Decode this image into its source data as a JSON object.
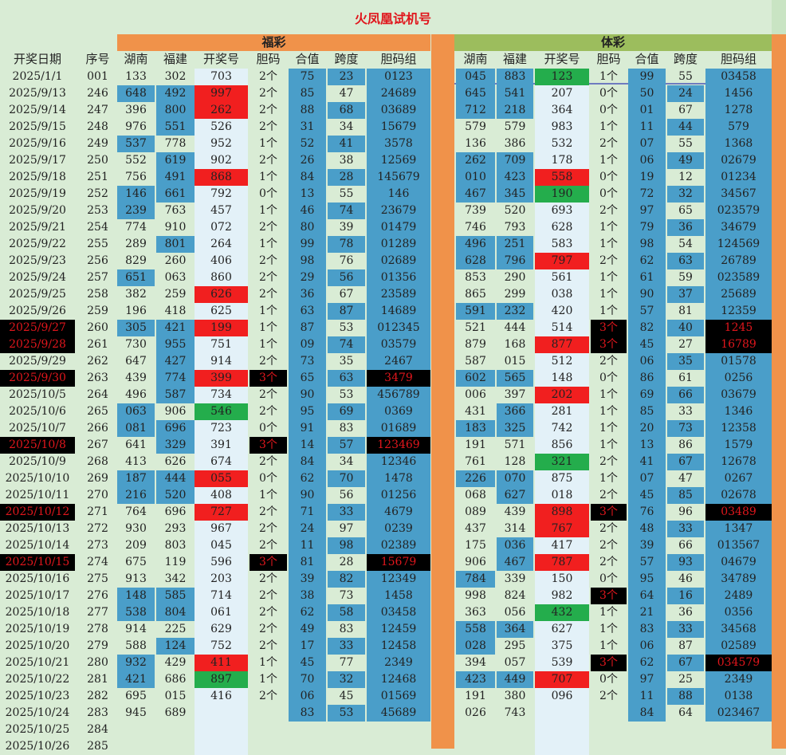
{
  "title": "火凤凰试机号",
  "section_fc": "福彩",
  "section_tc": "体彩",
  "headers": {
    "date": "开奖日期",
    "seq": "序号",
    "hunan": "湖南",
    "fujian": "福建",
    "draw": "开奖号",
    "dan": "胆码",
    "sum": "合值",
    "span": "跨度",
    "group": "胆码组"
  },
  "colors": {
    "blue": "#4a9ec9",
    "red": "#f11f1f",
    "green": "#24ad4c",
    "black": "#000000",
    "orange": "#f0924a",
    "olive": "#9cbd5d",
    "bg": "#d9ecd5"
  },
  "rows": [
    {
      "date": "2025/1/1",
      "seq": "001",
      "fc": {
        "hn": "133",
        "fj": "302",
        "draw": "703",
        "dan": "2个",
        "sum": "75",
        "span": "23",
        "group": "0123"
      },
      "tc": {
        "hn": "045",
        "fj": "883",
        "draw": "123",
        "dan": "1个",
        "sum": "99",
        "span": "55",
        "group": "03458"
      }
    },
    {
      "date": "2025/9/13",
      "seq": "246",
      "fc": {
        "hn": "648",
        "fj": "492",
        "draw": "997",
        "dan": "2个",
        "sum": "85",
        "span": "47",
        "group": "24689"
      },
      "tc": {
        "hn": "645",
        "fj": "541",
        "draw": "207",
        "dan": "0个",
        "sum": "50",
        "span": "24",
        "group": "1456"
      }
    },
    {
      "date": "2025/9/14",
      "seq": "247",
      "fc": {
        "hn": "396",
        "fj": "800",
        "draw": "262",
        "dan": "2个",
        "sum": "88",
        "span": "68",
        "group": "03689"
      },
      "tc": {
        "hn": "712",
        "fj": "218",
        "draw": "364",
        "dan": "0个",
        "sum": "01",
        "span": "67",
        "group": "1278"
      }
    },
    {
      "date": "2025/9/15",
      "seq": "248",
      "fc": {
        "hn": "976",
        "fj": "551",
        "draw": "526",
        "dan": "2个",
        "sum": "31",
        "span": "34",
        "group": "15679"
      },
      "tc": {
        "hn": "579",
        "fj": "579",
        "draw": "983",
        "dan": "1个",
        "sum": "11",
        "span": "44",
        "group": "579"
      }
    },
    {
      "date": "2025/9/16",
      "seq": "249",
      "fc": {
        "hn": "537",
        "fj": "778",
        "draw": "952",
        "dan": "1个",
        "sum": "52",
        "span": "41",
        "group": "3578"
      },
      "tc": {
        "hn": "136",
        "fj": "386",
        "draw": "532",
        "dan": "2个",
        "sum": "07",
        "span": "55",
        "group": "1368"
      }
    },
    {
      "date": "2025/9/17",
      "seq": "250",
      "fc": {
        "hn": "552",
        "fj": "619",
        "draw": "902",
        "dan": "2个",
        "sum": "26",
        "span": "38",
        "group": "12569"
      },
      "tc": {
        "hn": "262",
        "fj": "709",
        "draw": "178",
        "dan": "1个",
        "sum": "06",
        "span": "49",
        "group": "02679"
      }
    },
    {
      "date": "2025/9/18",
      "seq": "251",
      "fc": {
        "hn": "756",
        "fj": "491",
        "draw": "868",
        "dan": "1个",
        "sum": "84",
        "span": "28",
        "group": "145679"
      },
      "tc": {
        "hn": "010",
        "fj": "423",
        "draw": "558",
        "dan": "0个",
        "sum": "19",
        "span": "12",
        "group": "01234"
      }
    },
    {
      "date": "2025/9/19",
      "seq": "252",
      "fc": {
        "hn": "146",
        "fj": "661",
        "draw": "792",
        "dan": "0个",
        "sum": "13",
        "span": "55",
        "group": "146"
      },
      "tc": {
        "hn": "467",
        "fj": "345",
        "draw": "190",
        "dan": "0个",
        "sum": "72",
        "span": "32",
        "group": "34567"
      }
    },
    {
      "date": "2025/9/20",
      "seq": "253",
      "fc": {
        "hn": "239",
        "fj": "763",
        "draw": "457",
        "dan": "1个",
        "sum": "46",
        "span": "74",
        "group": "23679"
      },
      "tc": {
        "hn": "739",
        "fj": "520",
        "draw": "693",
        "dan": "2个",
        "sum": "97",
        "span": "65",
        "group": "023579"
      }
    },
    {
      "date": "2025/9/21",
      "seq": "254",
      "fc": {
        "hn": "774",
        "fj": "910",
        "draw": "072",
        "dan": "2个",
        "sum": "80",
        "span": "39",
        "group": "01479"
      },
      "tc": {
        "hn": "746",
        "fj": "793",
        "draw": "628",
        "dan": "1个",
        "sum": "79",
        "span": "36",
        "group": "34679"
      }
    },
    {
      "date": "2025/9/22",
      "seq": "255",
      "fc": {
        "hn": "289",
        "fj": "801",
        "draw": "264",
        "dan": "1个",
        "sum": "99",
        "span": "78",
        "group": "01289"
      },
      "tc": {
        "hn": "496",
        "fj": "251",
        "draw": "583",
        "dan": "1个",
        "sum": "98",
        "span": "54",
        "group": "124569"
      }
    },
    {
      "date": "2025/9/23",
      "seq": "256",
      "fc": {
        "hn": "829",
        "fj": "260",
        "draw": "406",
        "dan": "2个",
        "sum": "98",
        "span": "76",
        "group": "02689"
      },
      "tc": {
        "hn": "628",
        "fj": "796",
        "draw": "797",
        "dan": "2个",
        "sum": "62",
        "span": "63",
        "group": "26789"
      }
    },
    {
      "date": "2025/9/24",
      "seq": "257",
      "fc": {
        "hn": "651",
        "fj": "063",
        "draw": "860",
        "dan": "2个",
        "sum": "29",
        "span": "56",
        "group": "01356"
      },
      "tc": {
        "hn": "853",
        "fj": "290",
        "draw": "561",
        "dan": "1个",
        "sum": "61",
        "span": "59",
        "group": "023589"
      }
    },
    {
      "date": "2025/9/25",
      "seq": "258",
      "fc": {
        "hn": "382",
        "fj": "259",
        "draw": "626",
        "dan": "2个",
        "sum": "36",
        "span": "67",
        "group": "23589"
      },
      "tc": {
        "hn": "865",
        "fj": "299",
        "draw": "038",
        "dan": "1个",
        "sum": "90",
        "span": "37",
        "group": "25689"
      }
    },
    {
      "date": "2025/9/26",
      "seq": "259",
      "fc": {
        "hn": "196",
        "fj": "418",
        "draw": "625",
        "dan": "1个",
        "sum": "63",
        "span": "87",
        "group": "14689"
      },
      "tc": {
        "hn": "591",
        "fj": "232",
        "draw": "420",
        "dan": "1个",
        "sum": "57",
        "span": "81",
        "group": "12359"
      }
    },
    {
      "date": "2025/9/27",
      "seq": "260",
      "fc": {
        "hn": "305",
        "fj": "421",
        "draw": "199",
        "dan": "1个",
        "sum": "87",
        "span": "53",
        "group": "012345"
      },
      "tc": {
        "hn": "521",
        "fj": "444",
        "draw": "514",
        "dan": "3个",
        "sum": "82",
        "span": "40",
        "group": "1245"
      }
    },
    {
      "date": "2025/9/28",
      "seq": "261",
      "fc": {
        "hn": "730",
        "fj": "955",
        "draw": "751",
        "dan": "1个",
        "sum": "09",
        "span": "74",
        "group": "03579"
      },
      "tc": {
        "hn": "879",
        "fj": "168",
        "draw": "877",
        "dan": "3个",
        "sum": "45",
        "span": "27",
        "group": "16789"
      }
    },
    {
      "date": "2025/9/29",
      "seq": "262",
      "fc": {
        "hn": "647",
        "fj": "427",
        "draw": "914",
        "dan": "2个",
        "sum": "73",
        "span": "35",
        "group": "2467"
      },
      "tc": {
        "hn": "587",
        "fj": "015",
        "draw": "512",
        "dan": "2个",
        "sum": "06",
        "span": "35",
        "group": "01578"
      }
    },
    {
      "date": "2025/9/30",
      "seq": "263",
      "fc": {
        "hn": "439",
        "fj": "774",
        "draw": "399",
        "dan": "3个",
        "sum": "65",
        "span": "63",
        "group": "3479"
      },
      "tc": {
        "hn": "602",
        "fj": "565",
        "draw": "148",
        "dan": "0个",
        "sum": "86",
        "span": "61",
        "group": "0256"
      }
    },
    {
      "date": "2025/10/5",
      "seq": "264",
      "fc": {
        "hn": "496",
        "fj": "587",
        "draw": "734",
        "dan": "2个",
        "sum": "90",
        "span": "53",
        "group": "456789"
      },
      "tc": {
        "hn": "006",
        "fj": "397",
        "draw": "202",
        "dan": "1个",
        "sum": "69",
        "span": "66",
        "group": "03679"
      }
    },
    {
      "date": "2025/10/6",
      "seq": "265",
      "fc": {
        "hn": "063",
        "fj": "906",
        "draw": "546",
        "dan": "2个",
        "sum": "95",
        "span": "69",
        "group": "0369"
      },
      "tc": {
        "hn": "431",
        "fj": "366",
        "draw": "281",
        "dan": "1个",
        "sum": "85",
        "span": "33",
        "group": "1346"
      }
    },
    {
      "date": "2025/10/7",
      "seq": "266",
      "fc": {
        "hn": "081",
        "fj": "696",
        "draw": "723",
        "dan": "0个",
        "sum": "91",
        "span": "83",
        "group": "01689"
      },
      "tc": {
        "hn": "183",
        "fj": "325",
        "draw": "742",
        "dan": "1个",
        "sum": "20",
        "span": "73",
        "group": "12358"
      }
    },
    {
      "date": "2025/10/8",
      "seq": "267",
      "fc": {
        "hn": "641",
        "fj": "329",
        "draw": "391",
        "dan": "3个",
        "sum": "14",
        "span": "57",
        "group": "123469"
      },
      "tc": {
        "hn": "191",
        "fj": "571",
        "draw": "856",
        "dan": "1个",
        "sum": "13",
        "span": "86",
        "group": "1579"
      }
    },
    {
      "date": "2025/10/9",
      "seq": "268",
      "fc": {
        "hn": "413",
        "fj": "626",
        "draw": "674",
        "dan": "2个",
        "sum": "84",
        "span": "34",
        "group": "12346"
      },
      "tc": {
        "hn": "761",
        "fj": "128",
        "draw": "321",
        "dan": "2个",
        "sum": "41",
        "span": "67",
        "group": "12678"
      }
    },
    {
      "date": "2025/10/10",
      "seq": "269",
      "fc": {
        "hn": "187",
        "fj": "444",
        "draw": "055",
        "dan": "0个",
        "sum": "62",
        "span": "70",
        "group": "1478"
      },
      "tc": {
        "hn": "226",
        "fj": "070",
        "draw": "875",
        "dan": "1个",
        "sum": "07",
        "span": "47",
        "group": "0267"
      }
    },
    {
      "date": "2025/10/11",
      "seq": "270",
      "fc": {
        "hn": "216",
        "fj": "520",
        "draw": "408",
        "dan": "1个",
        "sum": "90",
        "span": "56",
        "group": "01256"
      },
      "tc": {
        "hn": "068",
        "fj": "627",
        "draw": "018",
        "dan": "2个",
        "sum": "45",
        "span": "85",
        "group": "02678"
      }
    },
    {
      "date": "2025/10/12",
      "seq": "271",
      "fc": {
        "hn": "764",
        "fj": "696",
        "draw": "727",
        "dan": "2个",
        "sum": "71",
        "span": "33",
        "group": "4679"
      },
      "tc": {
        "hn": "089",
        "fj": "439",
        "draw": "898",
        "dan": "3个",
        "sum": "76",
        "span": "96",
        "group": "03489"
      }
    },
    {
      "date": "2025/10/13",
      "seq": "272",
      "fc": {
        "hn": "930",
        "fj": "293",
        "draw": "967",
        "dan": "2个",
        "sum": "24",
        "span": "97",
        "group": "0239"
      },
      "tc": {
        "hn": "437",
        "fj": "314",
        "draw": "767",
        "dan": "2个",
        "sum": "48",
        "span": "33",
        "group": "1347"
      }
    },
    {
      "date": "2025/10/14",
      "seq": "273",
      "fc": {
        "hn": "209",
        "fj": "803",
        "draw": "045",
        "dan": "2个",
        "sum": "11",
        "span": "98",
        "group": "02389"
      },
      "tc": {
        "hn": "175",
        "fj": "036",
        "draw": "417",
        "dan": "2个",
        "sum": "39",
        "span": "66",
        "group": "013567"
      }
    },
    {
      "date": "2025/10/15",
      "seq": "274",
      "fc": {
        "hn": "675",
        "fj": "119",
        "draw": "596",
        "dan": "3个",
        "sum": "81",
        "span": "28",
        "group": "15679"
      },
      "tc": {
        "hn": "906",
        "fj": "467",
        "draw": "787",
        "dan": "2个",
        "sum": "57",
        "span": "93",
        "group": "04679"
      }
    },
    {
      "date": "2025/10/16",
      "seq": "275",
      "fc": {
        "hn": "913",
        "fj": "342",
        "draw": "203",
        "dan": "2个",
        "sum": "39",
        "span": "82",
        "group": "12349"
      },
      "tc": {
        "hn": "784",
        "fj": "339",
        "draw": "150",
        "dan": "0个",
        "sum": "95",
        "span": "46",
        "group": "34789"
      }
    },
    {
      "date": "2025/10/17",
      "seq": "276",
      "fc": {
        "hn": "148",
        "fj": "585",
        "draw": "714",
        "dan": "2个",
        "sum": "38",
        "span": "73",
        "group": "1458"
      },
      "tc": {
        "hn": "998",
        "fj": "824",
        "draw": "982",
        "dan": "3个",
        "sum": "64",
        "span": "16",
        "group": "2489"
      }
    },
    {
      "date": "2025/10/18",
      "seq": "277",
      "fc": {
        "hn": "538",
        "fj": "804",
        "draw": "061",
        "dan": "2个",
        "sum": "62",
        "span": "58",
        "group": "03458"
      },
      "tc": {
        "hn": "363",
        "fj": "056",
        "draw": "432",
        "dan": "1个",
        "sum": "21",
        "span": "36",
        "group": "0356"
      }
    },
    {
      "date": "2025/10/19",
      "seq": "278",
      "fc": {
        "hn": "914",
        "fj": "225",
        "draw": "629",
        "dan": "2个",
        "sum": "49",
        "span": "83",
        "group": "12459"
      },
      "tc": {
        "hn": "558",
        "fj": "364",
        "draw": "627",
        "dan": "1个",
        "sum": "83",
        "span": "33",
        "group": "34568"
      }
    },
    {
      "date": "2025/10/20",
      "seq": "279",
      "fc": {
        "hn": "588",
        "fj": "124",
        "draw": "752",
        "dan": "2个",
        "sum": "17",
        "span": "33",
        "group": "12458"
      },
      "tc": {
        "hn": "028",
        "fj": "295",
        "draw": "375",
        "dan": "1个",
        "sum": "06",
        "span": "87",
        "group": "02589"
      }
    },
    {
      "date": "2025/10/21",
      "seq": "280",
      "fc": {
        "hn": "932",
        "fj": "429",
        "draw": "411",
        "dan": "1个",
        "sum": "45",
        "span": "77",
        "group": "2349"
      },
      "tc": {
        "hn": "394",
        "fj": "057",
        "draw": "539",
        "dan": "3个",
        "sum": "62",
        "span": "67",
        "group": "034579"
      }
    },
    {
      "date": "2025/10/22",
      "seq": "281",
      "fc": {
        "hn": "421",
        "fj": "686",
        "draw": "897",
        "dan": "1个",
        "sum": "70",
        "span": "32",
        "group": "12468"
      },
      "tc": {
        "hn": "423",
        "fj": "449",
        "draw": "707",
        "dan": "0个",
        "sum": "97",
        "span": "25",
        "group": "2349"
      }
    },
    {
      "date": "2025/10/23",
      "seq": "282",
      "fc": {
        "hn": "695",
        "fj": "015",
        "draw": "416",
        "dan": "2个",
        "sum": "06",
        "span": "45",
        "group": "01569"
      },
      "tc": {
        "hn": "191",
        "fj": "380",
        "draw": "096",
        "dan": "2个",
        "sum": "11",
        "span": "88",
        "group": "0138"
      }
    },
    {
      "date": "2025/10/24",
      "seq": "283",
      "fc": {
        "hn": "945",
        "fj": "689",
        "draw": "",
        "dan": "",
        "sum": "83",
        "span": "53",
        "group": "45689"
      },
      "tc": {
        "hn": "026",
        "fj": "743",
        "draw": "",
        "dan": "",
        "sum": "84",
        "span": "64",
        "group": "023467"
      }
    },
    {
      "date": "2025/10/25",
      "seq": "284",
      "fc": {
        "hn": "",
        "fj": "",
        "draw": "",
        "dan": "",
        "sum": "",
        "span": "",
        "group": ""
      },
      "tc": {
        "hn": "",
        "fj": "",
        "draw": "",
        "dan": "",
        "sum": "",
        "span": "",
        "group": ""
      }
    },
    {
      "date": "2025/10/26",
      "seq": "285",
      "fc": {
        "hn": "",
        "fj": "",
        "draw": "",
        "dan": "",
        "sum": "",
        "span": "",
        "group": ""
      },
      "tc": {
        "hn": "",
        "fj": "",
        "draw": "",
        "dan": "",
        "sum": "",
        "span": "",
        "group": ""
      }
    }
  ]
}
